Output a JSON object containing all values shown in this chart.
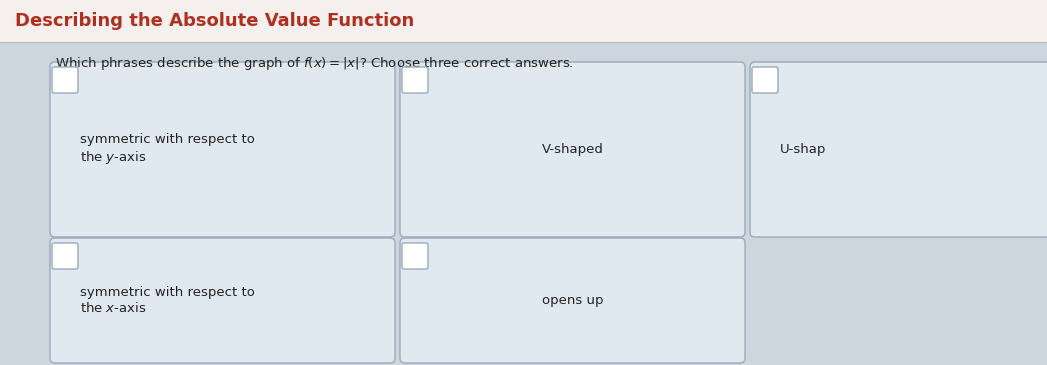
{
  "title": "Describing the Absolute Value Function",
  "title_color": "#b03020",
  "question": "Which phrases describe the graph of $f(x) = |x|$? Choose three correct answers.",
  "top_bar_color": "#f5f0ee",
  "main_bg_color": "#cdd5de",
  "card_background": "#e0e8f0",
  "card_border_color": "#9aabba",
  "checkbox_color": "#ffffff",
  "checkbox_border": "#9aabba",
  "cards": [
    {
      "text": "symmetric with respect to\nthe $y$-axis",
      "row": 0,
      "col": 0,
      "text_align": "left"
    },
    {
      "text": "V-shaped",
      "row": 0,
      "col": 1,
      "text_align": "center"
    },
    {
      "text": "U-shap",
      "row": 0,
      "col": 2,
      "text_align": "left"
    },
    {
      "text": "symmetric with respect to\nthe $x$-axis",
      "row": 1,
      "col": 0,
      "text_align": "left"
    },
    {
      "text": "opens up",
      "row": 1,
      "col": 1,
      "text_align": "center"
    }
  ],
  "figsize": [
    10.47,
    3.65
  ],
  "dpi": 100
}
